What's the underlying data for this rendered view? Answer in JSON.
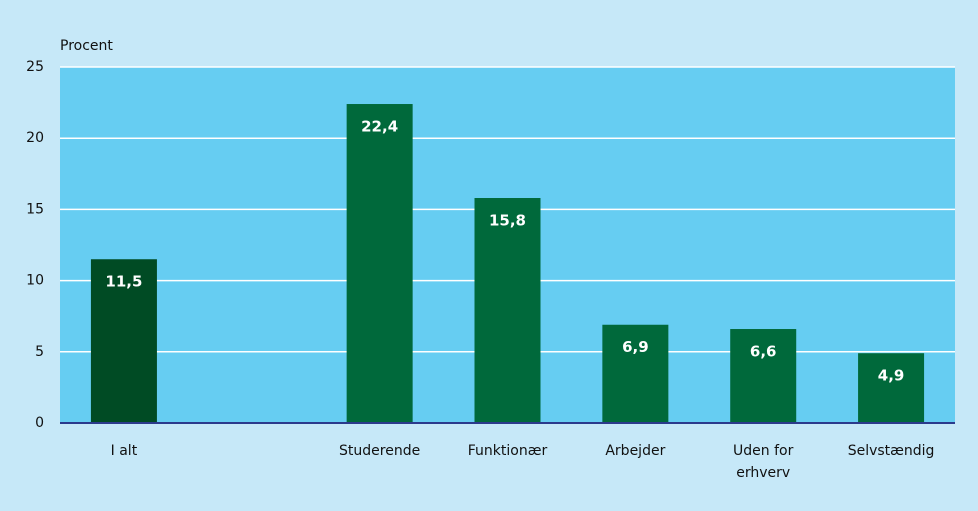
{
  "chart_data": {
    "type": "bar",
    "y_label": "Procent",
    "categories": [
      "I alt",
      null,
      "Studerende",
      "Funktionær",
      "Arbejder",
      "Uden for erhverv",
      "Selvstændig"
    ],
    "values": [
      11.5,
      null,
      22.4,
      15.8,
      6.9,
      6.6,
      4.9
    ],
    "value_labels": [
      "11,5",
      null,
      "22,4",
      "15,8",
      "6,9",
      "6,6",
      "4,9"
    ],
    "colors": [
      "#004b24",
      null,
      "#00693b",
      "#00693b",
      "#00693b",
      "#00693b",
      "#00693b"
    ],
    "ylim": [
      0,
      25
    ],
    "yticks": [
      0,
      5,
      10,
      15,
      20,
      25
    ],
    "grid": true
  }
}
